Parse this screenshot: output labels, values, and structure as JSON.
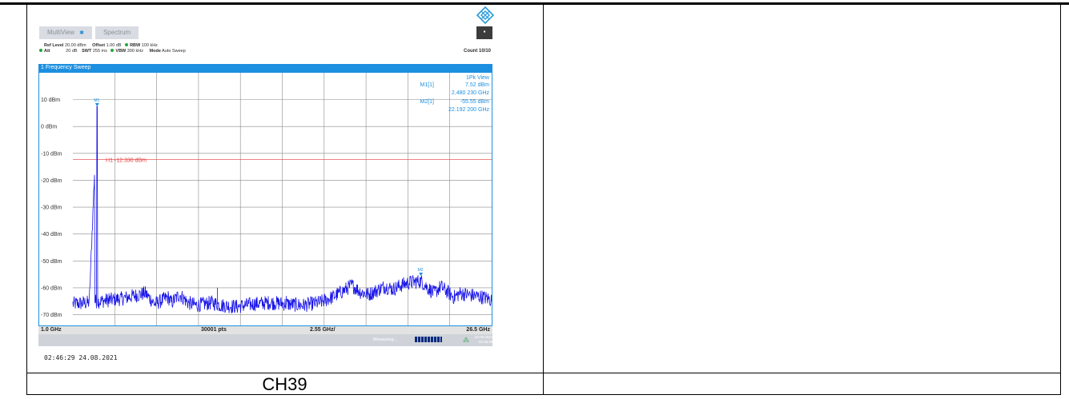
{
  "caption": "CH39",
  "tabs": [
    {
      "label": "MultiView",
      "close": "✱"
    },
    {
      "label": "Spectrum",
      "close": ""
    }
  ],
  "tab_menu_icon": "▪",
  "info": {
    "ref_level_label": "Ref Level",
    "ref_level_value": "20.00 dBm",
    "offset_label": "Offset",
    "offset_value": "1.00 dB",
    "rbw_label": "RBW",
    "rbw_value": "100 kHz",
    "att_label": "Att",
    "att_value": "20 dB",
    "swt_label": "SWT",
    "swt_value": "255 ms",
    "vbw_label": "VBW",
    "vbw_value": "300 kHz",
    "mode_label": "Mode",
    "mode_value": "Auto Sweep",
    "count": "Count 10/10"
  },
  "sweep_title": "1 Frequency Sweep",
  "footer": {
    "start": "1.0 GHz",
    "points": "30001 pts",
    "span": "2.55 GHz/",
    "stop": "26.5 GHz"
  },
  "status": {
    "measuring": "Measuring...",
    "date": "24.08.2021",
    "time": "02:46:38"
  },
  "timestamp": "02:46:29  24.08.2021",
  "colors": {
    "trace": "#1a16e8",
    "accent": "#1d8fe0",
    "threshold": "#e83a3a",
    "grid": "#8a8a8a"
  },
  "chart_data": {
    "type": "line",
    "title": "1 Frequency Sweep",
    "trace_label": "1Pk View",
    "x_unit": "GHz",
    "xlim": [
      1.0,
      26.5
    ],
    "ylim": [
      -74,
      20
    ],
    "yticks": [
      10,
      0,
      -10,
      -20,
      -30,
      -40,
      -50,
      -60,
      -70
    ],
    "ytick_labels": [
      "10 dBm",
      "0 dBm",
      "-10 dBm",
      "-20 dBm",
      "-30 dBm",
      "-40 dBm",
      "-50 dBm",
      "-60 dBm",
      "-70 dBm"
    ],
    "grid": true,
    "threshold": {
      "label": "H1 -12.330 dBm",
      "value": -12.33
    },
    "markers": [
      {
        "name": "M1",
        "readout_name": "M1[1]",
        "x": 2.48023,
        "y": 7.52,
        "level": "7.52 dBm",
        "freq": "2.480 230 GHz"
      },
      {
        "name": "M2",
        "readout_name": "M2[1]",
        "x": 22.1922,
        "y": -55.55,
        "level": "-55.55 dBm",
        "freq": "22.192 200 GHz"
      }
    ],
    "series": [
      {
        "x": [
          1.0,
          2.0,
          2.48,
          2.6,
          4.0,
          5.4,
          6.0,
          6.8,
          7.0,
          7.5,
          8.0,
          8.5,
          9.0,
          9.5,
          10.0,
          11.0,
          12.0,
          13.0,
          14.0,
          15.0,
          16.0,
          16.8,
          17.5,
          18.0,
          18.5,
          19.0,
          19.5,
          20.0,
          20.5,
          21.0,
          21.5,
          22.2,
          22.6,
          23.0,
          23.4,
          23.8,
          24.2,
          24.6,
          25.0,
          25.5,
          26.0,
          26.5
        ],
        "y": [
          -66,
          -65.5,
          7.52,
          -65,
          -64,
          -62,
          -66,
          -63.5,
          -65.5,
          -62.5,
          -65.5,
          -66.5,
          -66,
          -65.5,
          -66.5,
          -67,
          -66,
          -65.5,
          -66,
          -66.5,
          -65.5,
          -63.5,
          -61,
          -59,
          -61.5,
          -62.5,
          -61,
          -59.5,
          -60.5,
          -59,
          -58,
          -57.5,
          -60,
          -62,
          -59.5,
          -61.5,
          -63.5,
          -62,
          -62.5,
          -63,
          -63.5,
          -64.5
        ]
      }
    ]
  }
}
